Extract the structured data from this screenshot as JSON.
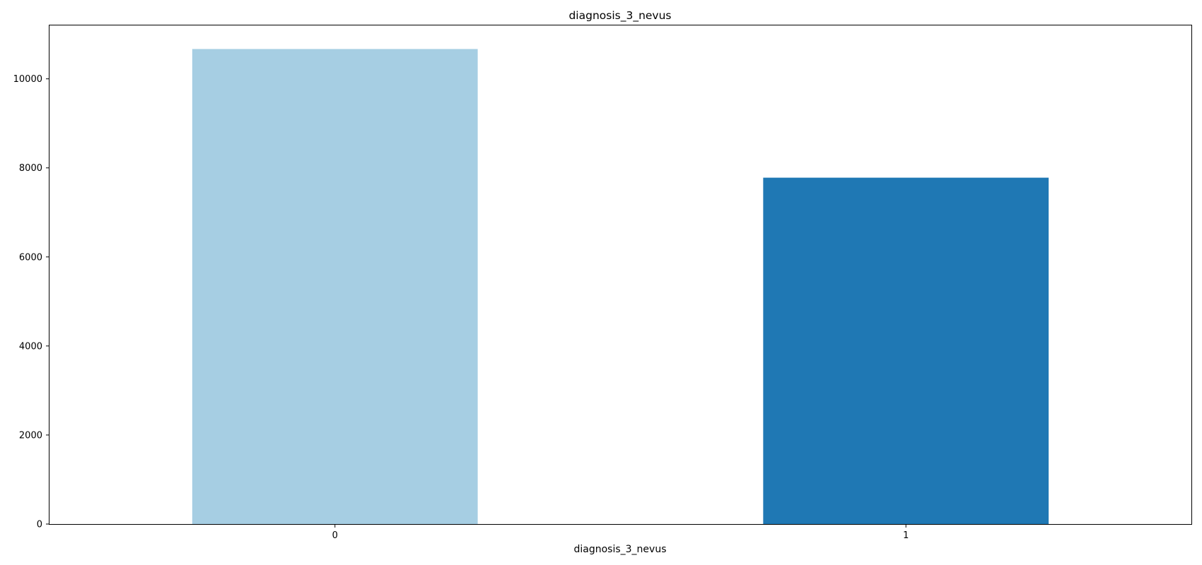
{
  "chart_data": {
    "type": "bar",
    "title": "diagnosis_3_nevus",
    "xlabel": "diagnosis_3_nevus",
    "ylabel": "",
    "categories": [
      "0",
      "1"
    ],
    "values": [
      10670,
      7780
    ],
    "colors": [
      "#a6cee3",
      "#1f78b4"
    ],
    "ylim": [
      0,
      11200
    ],
    "yticks": [
      0,
      2000,
      4000,
      6000,
      8000,
      10000
    ],
    "ytick_labels": [
      "0",
      "2000",
      "4000",
      "6000",
      "8000",
      "10000"
    ],
    "grid": false,
    "legend": "none"
  }
}
